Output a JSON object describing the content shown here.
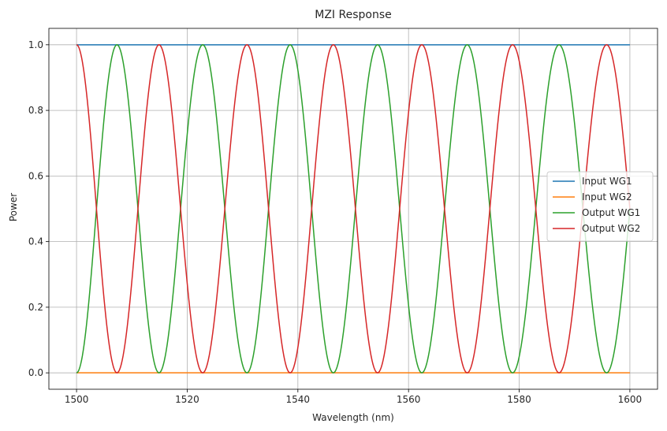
{
  "chart_data": {
    "type": "line",
    "title": "MZI Response",
    "xlabel": "Wavelength (nm)",
    "ylabel": "Power",
    "xlim": [
      1495,
      1605
    ],
    "ylim": [
      -0.05,
      1.05
    ],
    "xticks": [
      1500,
      1520,
      1540,
      1560,
      1580,
      1600
    ],
    "xtick_labels": [
      "1500",
      "1520",
      "1540",
      "1560",
      "1580",
      "1600"
    ],
    "yticks": [
      0.0,
      0.2,
      0.4,
      0.6,
      0.8,
      1.0
    ],
    "ytick_labels": [
      "0.0",
      "0.2",
      "0.4",
      "0.6",
      "0.8",
      "1.0"
    ],
    "grid": true,
    "legend_position": "center-right",
    "series": [
      {
        "name": "Input WG1",
        "color": "#1f77b4",
        "x": [
          1500,
          1600
        ],
        "y": [
          1.0,
          1.0
        ]
      },
      {
        "name": "Input WG2",
        "color": "#ff7f0e",
        "x": [
          1500,
          1600
        ],
        "y": [
          0.0,
          0.0
        ]
      },
      {
        "name": "Output WG1",
        "color": "#2ca02c",
        "x": [
          1500,
          1503.6,
          1507.3,
          1511.1,
          1514.9,
          1518.8,
          1522.8,
          1526.8,
          1530.8,
          1534.7,
          1538.6,
          1542.5,
          1546.4,
          1550.4,
          1554.4,
          1558.4,
          1562.4,
          1566.5,
          1570.6,
          1574.7,
          1578.8,
          1583.0,
          1587.2,
          1591.5,
          1595.8,
          1600
        ],
        "y": [
          0.0,
          0.5,
          1.0,
          0.5,
          0.0,
          0.5,
          1.0,
          0.5,
          0.0,
          0.5,
          1.0,
          0.5,
          0.0,
          0.5,
          1.0,
          0.5,
          0.0,
          0.5,
          1.0,
          0.5,
          0.0,
          0.5,
          1.0,
          0.5,
          0.0,
          0.5
        ]
      },
      {
        "name": "Output WG2",
        "color": "#d62728",
        "x": [
          1500,
          1503.6,
          1507.3,
          1511.1,
          1514.9,
          1518.8,
          1522.8,
          1526.8,
          1530.8,
          1534.7,
          1538.6,
          1542.5,
          1546.4,
          1550.4,
          1554.4,
          1558.4,
          1562.4,
          1566.5,
          1570.6,
          1574.7,
          1578.8,
          1583.0,
          1587.2,
          1591.5,
          1595.8,
          1600
        ],
        "y": [
          1.0,
          0.5,
          0.0,
          0.5,
          1.0,
          0.5,
          0.0,
          0.5,
          1.0,
          0.5,
          0.0,
          0.5,
          1.0,
          0.5,
          0.0,
          0.5,
          1.0,
          0.5,
          0.0,
          0.5,
          1.0,
          0.5,
          0.0,
          0.5,
          1.0,
          0.5
        ]
      }
    ]
  }
}
